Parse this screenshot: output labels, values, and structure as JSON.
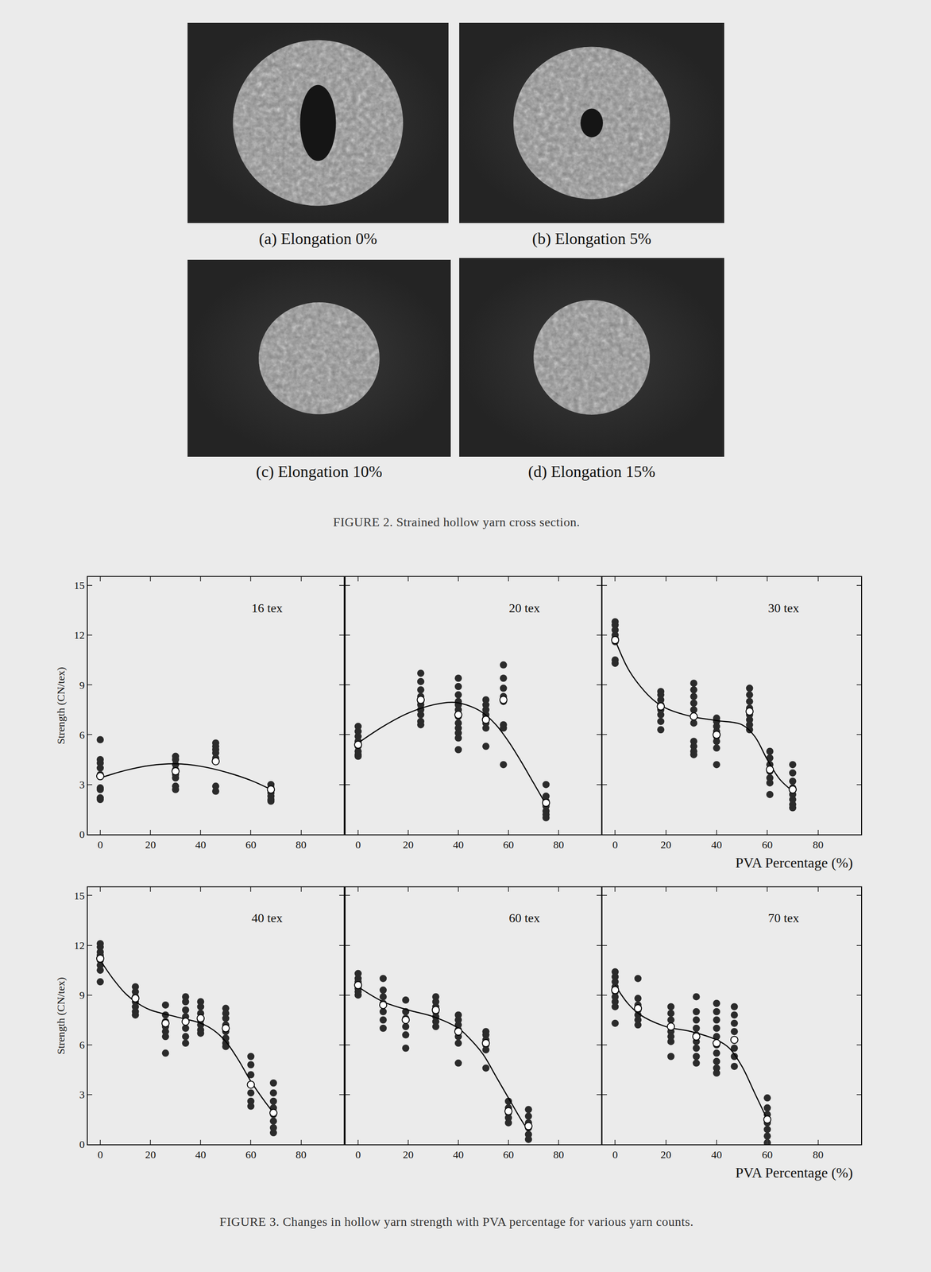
{
  "figure2": {
    "panels": [
      "(a) Elongation 0%",
      "(b) Elongation 5%",
      "(c) Elongation 10%",
      "(d) Elongation 15%"
    ],
    "caption": "FIGURE 2. Strained hollow yarn cross section."
  },
  "figure3": {
    "caption": "FIGURE 3. Changes in hollow yarn strength with PVA percentage for various yarn counts."
  },
  "chart_data": [
    {
      "type": "scatter",
      "title": "16 tex",
      "y_label": "Strength (CN/tex)",
      "xlim": [
        -5,
        97
      ],
      "ylim": [
        0,
        15.5
      ],
      "xticks": [
        0,
        20,
        40,
        60,
        80
      ],
      "yticks": [
        0,
        3,
        6,
        9,
        12,
        15
      ],
      "grid": false,
      "series": [
        {
          "type": "scatter",
          "marker": "filled circle",
          "color": "#2b2b2b",
          "x": [
            0,
            0,
            0,
            0,
            0,
            0,
            0,
            0,
            0,
            30,
            30,
            30,
            30,
            30,
            30,
            30,
            30,
            46,
            46,
            46,
            46,
            46,
            46,
            46,
            46,
            68,
            68,
            68,
            68,
            68,
            68
          ],
          "values": [
            5.7,
            4.5,
            4.3,
            4.0,
            3.6,
            2.8,
            2.7,
            2.2,
            2.1,
            4.7,
            4.5,
            4.2,
            3.9,
            3.6,
            3.4,
            2.9,
            2.7,
            5.5,
            5.3,
            5.1,
            4.9,
            4.6,
            4.4,
            2.9,
            2.6,
            3.0,
            2.8,
            2.5,
            2.3,
            2.1,
            2.0
          ]
        },
        {
          "type": "line",
          "line_style": "solid",
          "color": "#000000",
          "x": [
            0,
            10,
            20,
            30,
            40,
            50,
            60,
            68
          ],
          "values": [
            3.4,
            3.85,
            4.15,
            4.25,
            4.1,
            3.75,
            3.25,
            2.7
          ]
        },
        {
          "type": "scatter",
          "marker": "open circle",
          "color": "#ffffff",
          "x": [
            0,
            30,
            46,
            68
          ],
          "values": [
            3.5,
            3.8,
            4.4,
            2.7
          ]
        }
      ]
    },
    {
      "type": "scatter",
      "title": "20 tex",
      "tick_labels": "x",
      "xlim": [
        -5,
        97
      ],
      "ylim": [
        0,
        15.5
      ],
      "xticks": [
        0,
        20,
        40,
        60,
        80
      ],
      "yticks": [
        0,
        3,
        6,
        9,
        12,
        15
      ],
      "grid": false,
      "series": [
        {
          "type": "scatter",
          "marker": "filled circle",
          "color": "#2b2b2b",
          "x": [
            0,
            0,
            0,
            0,
            0,
            0,
            0,
            0,
            25,
            25,
            25,
            25,
            25,
            25,
            25,
            25,
            25,
            25,
            40,
            40,
            40,
            40,
            40,
            40,
            40,
            40,
            40,
            40,
            40,
            40,
            51,
            51,
            51,
            51,
            51,
            51,
            51,
            51,
            58,
            58,
            58,
            58,
            58,
            58,
            58,
            58,
            75,
            75,
            75,
            75,
            75,
            75,
            75
          ],
          "values": [
            6.5,
            6.2,
            5.9,
            5.6,
            5.3,
            5.0,
            4.8,
            4.7,
            9.7,
            9.2,
            8.7,
            8.3,
            8.0,
            7.8,
            7.5,
            7.2,
            6.8,
            6.6,
            9.4,
            8.9,
            8.4,
            8.0,
            7.8,
            7.5,
            7.1,
            6.7,
            6.4,
            6.1,
            5.8,
            5.1,
            8.1,
            7.8,
            7.5,
            7.2,
            7.0,
            6.7,
            6.4,
            5.3,
            10.2,
            9.4,
            8.8,
            8.3,
            8.0,
            6.6,
            6.4,
            4.2,
            3.0,
            2.3,
            2.0,
            1.7,
            1.4,
            1.2,
            1.0
          ]
        },
        {
          "type": "line",
          "line_style": "solid",
          "color": "#000000",
          "x": [
            0,
            10,
            20,
            30,
            38,
            45,
            50,
            55,
            60,
            65,
            70,
            75
          ],
          "values": [
            5.5,
            6.5,
            7.3,
            7.8,
            7.95,
            7.7,
            7.3,
            6.6,
            5.6,
            4.4,
            3.1,
            1.8
          ]
        },
        {
          "type": "scatter",
          "marker": "open circle",
          "color": "#ffffff",
          "x": [
            0,
            25,
            40,
            51,
            58,
            75
          ],
          "values": [
            5.4,
            8.1,
            7.2,
            6.9,
            8.1,
            1.9
          ]
        }
      ]
    },
    {
      "type": "scatter",
      "title": "30 tex",
      "x_label": "PVA Percentage (%)",
      "tick_labels": "x",
      "xlim": [
        -5,
        97
      ],
      "ylim": [
        0,
        15.5
      ],
      "xticks": [
        0,
        20,
        40,
        60,
        80
      ],
      "yticks": [
        0,
        3,
        6,
        9,
        12,
        15
      ],
      "grid": false,
      "series": [
        {
          "type": "scatter",
          "marker": "filled circle",
          "color": "#2b2b2b",
          "x": [
            0,
            0,
            0,
            0,
            0,
            0,
            0,
            0,
            18,
            18,
            18,
            18,
            18,
            18,
            18,
            18,
            31,
            31,
            31,
            31,
            31,
            31,
            31,
            31,
            31,
            31,
            31,
            40,
            40,
            40,
            40,
            40,
            40,
            40,
            40,
            53,
            53,
            53,
            53,
            53,
            53,
            53,
            53,
            61,
            61,
            61,
            61,
            61,
            61,
            61,
            70,
            70,
            70,
            70,
            70,
            70,
            70,
            70
          ],
          "values": [
            12.8,
            12.6,
            12.3,
            12.0,
            11.8,
            11.6,
            10.5,
            10.3,
            8.6,
            8.4,
            8.1,
            7.8,
            7.5,
            7.2,
            6.8,
            6.3,
            9.1,
            8.7,
            8.3,
            7.9,
            7.5,
            7.1,
            6.7,
            5.6,
            5.3,
            5.0,
            4.8,
            7.0,
            6.8,
            6.5,
            6.2,
            5.9,
            5.6,
            5.2,
            4.2,
            8.8,
            8.4,
            8.0,
            7.6,
            7.2,
            6.9,
            6.6,
            6.3,
            5.0,
            4.6,
            4.2,
            3.8,
            3.4,
            3.1,
            2.4,
            4.2,
            3.7,
            3.2,
            2.8,
            2.4,
            2.1,
            1.8,
            1.6
          ]
        },
        {
          "type": "line",
          "line_style": "solid",
          "color": "#000000",
          "x": [
            0,
            5,
            10,
            15,
            20,
            30,
            40,
            50,
            55,
            60,
            65,
            70
          ],
          "values": [
            11.7,
            10.0,
            8.9,
            8.1,
            7.6,
            7.1,
            6.85,
            6.6,
            5.9,
            4.5,
            3.3,
            2.6
          ]
        },
        {
          "type": "scatter",
          "marker": "open circle",
          "color": "#ffffff",
          "x": [
            0,
            18,
            31,
            40,
            53,
            61,
            70
          ],
          "values": [
            11.7,
            7.7,
            7.1,
            6.0,
            7.4,
            3.9,
            2.7
          ]
        }
      ]
    },
    {
      "type": "scatter",
      "title": "40 tex",
      "y_label": "Strength (CN/tex)",
      "xlim": [
        -5,
        97
      ],
      "ylim": [
        0,
        15.5
      ],
      "xticks": [
        0,
        20,
        40,
        60,
        80
      ],
      "yticks": [
        0,
        3,
        6,
        9,
        12,
        15
      ],
      "grid": false,
      "series": [
        {
          "type": "scatter",
          "marker": "filled circle",
          "color": "#2b2b2b",
          "x": [
            0,
            0,
            0,
            0,
            0,
            0,
            0,
            0,
            14,
            14,
            14,
            14,
            14,
            14,
            14,
            26,
            26,
            26,
            26,
            26,
            26,
            26,
            34,
            34,
            34,
            34,
            34,
            34,
            34,
            34,
            40,
            40,
            40,
            40,
            40,
            40,
            40,
            50,
            50,
            50,
            50,
            50,
            50,
            50,
            50,
            60,
            60,
            60,
            60,
            60,
            60,
            60,
            69,
            69,
            69,
            69,
            69,
            69,
            69,
            69
          ],
          "values": [
            12.1,
            11.9,
            11.6,
            11.4,
            11.1,
            10.8,
            10.5,
            9.8,
            9.5,
            9.2,
            8.9,
            8.6,
            8.3,
            8.0,
            7.8,
            8.4,
            7.8,
            7.4,
            7.1,
            6.8,
            6.5,
            5.5,
            8.9,
            8.6,
            8.1,
            7.7,
            7.4,
            7.0,
            6.5,
            6.1,
            8.6,
            8.3,
            7.9,
            7.5,
            7.2,
            6.9,
            6.7,
            8.2,
            7.9,
            7.6,
            7.2,
            6.8,
            6.4,
            6.1,
            5.9,
            5.3,
            4.8,
            4.2,
            3.6,
            3.1,
            2.6,
            2.3,
            3.7,
            3.1,
            2.6,
            2.2,
            1.8,
            1.4,
            1.0,
            0.7
          ]
        },
        {
          "type": "line",
          "line_style": "solid",
          "color": "#000000",
          "x": [
            0,
            5,
            10,
            15,
            20,
            30,
            40,
            45,
            50,
            55,
            60,
            65,
            69
          ],
          "values": [
            11.1,
            10.0,
            9.1,
            8.5,
            8.1,
            7.7,
            7.3,
            6.9,
            6.2,
            5.1,
            3.8,
            2.7,
            1.9
          ]
        },
        {
          "type": "scatter",
          "marker": "open circle",
          "color": "#ffffff",
          "x": [
            0,
            14,
            26,
            34,
            40,
            50,
            60,
            69
          ],
          "values": [
            11.2,
            8.8,
            7.3,
            7.4,
            7.6,
            7.0,
            3.6,
            1.9
          ]
        }
      ]
    },
    {
      "type": "scatter",
      "title": "60 tex",
      "tick_labels": "x",
      "xlim": [
        -5,
        97
      ],
      "ylim": [
        0,
        15.5
      ],
      "xticks": [
        0,
        20,
        40,
        60,
        80
      ],
      "yticks": [
        0,
        3,
        6,
        9,
        12,
        15
      ],
      "grid": false,
      "series": [
        {
          "type": "scatter",
          "marker": "filled circle",
          "color": "#2b2b2b",
          "x": [
            0,
            0,
            0,
            0,
            0,
            0,
            0,
            10,
            10,
            10,
            10,
            10,
            10,
            10,
            19,
            19,
            19,
            19,
            19,
            19,
            31,
            31,
            31,
            31,
            31,
            31,
            31,
            40,
            40,
            40,
            40,
            40,
            40,
            40,
            51,
            51,
            51,
            51,
            51,
            51,
            60,
            60,
            60,
            60,
            60,
            68,
            68,
            68,
            68,
            68,
            68
          ],
          "values": [
            10.3,
            10.0,
            9.8,
            9.6,
            9.4,
            9.2,
            9.0,
            10.0,
            9.3,
            8.9,
            8.5,
            8.0,
            7.5,
            7.0,
            8.7,
            8.0,
            7.6,
            7.1,
            6.6,
            5.8,
            8.9,
            8.6,
            8.3,
            8.0,
            7.7,
            7.4,
            7.1,
            7.8,
            7.5,
            7.2,
            6.9,
            6.5,
            6.1,
            4.9,
            6.8,
            6.6,
            6.3,
            6.0,
            5.7,
            4.6,
            2.6,
            2.2,
            1.9,
            1.6,
            1.3,
            2.1,
            1.7,
            1.3,
            1.0,
            0.6,
            0.3
          ]
        },
        {
          "type": "line",
          "line_style": "solid",
          "color": "#000000",
          "x": [
            0,
            10,
            20,
            30,
            40,
            45,
            50,
            55,
            60,
            65,
            68
          ],
          "values": [
            9.5,
            8.6,
            8.1,
            7.7,
            7.0,
            6.3,
            5.4,
            4.1,
            2.8,
            1.5,
            0.8
          ]
        },
        {
          "type": "scatter",
          "marker": "open circle",
          "color": "#ffffff",
          "x": [
            0,
            10,
            19,
            31,
            40,
            51,
            60,
            68
          ],
          "values": [
            9.6,
            8.4,
            7.5,
            8.1,
            6.8,
            6.1,
            2.0,
            1.1
          ]
        }
      ]
    },
    {
      "type": "scatter",
      "title": "70 tex",
      "x_label": "PVA Percentage (%)",
      "tick_labels": "x",
      "xlim": [
        -5,
        97
      ],
      "ylim": [
        0,
        15.5
      ],
      "xticks": [
        0,
        20,
        40,
        60,
        80
      ],
      "yticks": [
        0,
        3,
        6,
        9,
        12,
        15
      ],
      "grid": false,
      "series": [
        {
          "type": "scatter",
          "marker": "filled circle",
          "color": "#2b2b2b",
          "x": [
            0,
            0,
            0,
            0,
            0,
            0,
            0,
            0,
            0,
            9,
            9,
            9,
            9,
            9,
            9,
            9,
            22,
            22,
            22,
            22,
            22,
            22,
            22,
            22,
            32,
            32,
            32,
            32,
            32,
            32,
            32,
            32,
            32,
            40,
            40,
            40,
            40,
            40,
            40,
            40,
            40,
            40,
            40,
            47,
            47,
            47,
            47,
            47,
            47,
            47,
            47,
            60,
            60,
            60,
            60,
            60,
            60,
            60
          ],
          "values": [
            10.4,
            10.1,
            9.8,
            9.5,
            9.2,
            8.9,
            8.6,
            8.3,
            7.3,
            10.0,
            8.8,
            8.4,
            8.1,
            7.8,
            7.5,
            7.2,
            8.3,
            7.9,
            7.5,
            7.1,
            6.8,
            6.5,
            6.2,
            5.3,
            8.9,
            8.0,
            7.5,
            7.0,
            6.6,
            6.2,
            5.8,
            5.3,
            4.9,
            8.5,
            8.0,
            7.5,
            7.0,
            6.5,
            6.0,
            5.5,
            5.0,
            4.6,
            4.3,
            8.3,
            7.8,
            7.3,
            6.8,
            6.3,
            5.8,
            5.3,
            4.7,
            2.8,
            2.2,
            1.8,
            1.3,
            0.9,
            0.5,
            0.1
          ]
        },
        {
          "type": "line",
          "line_style": "solid",
          "color": "#000000",
          "x": [
            0,
            5,
            10,
            20,
            30,
            40,
            45,
            50,
            55,
            60
          ],
          "values": [
            9.6,
            8.5,
            7.8,
            7.1,
            6.8,
            6.3,
            5.8,
            4.7,
            3.1,
            1.5
          ]
        },
        {
          "type": "scatter",
          "marker": "open circle",
          "color": "#ffffff",
          "x": [
            0,
            9,
            22,
            32,
            40,
            47,
            60
          ],
          "values": [
            9.3,
            8.2,
            7.1,
            6.5,
            6.1,
            6.3,
            1.5
          ]
        }
      ]
    }
  ]
}
